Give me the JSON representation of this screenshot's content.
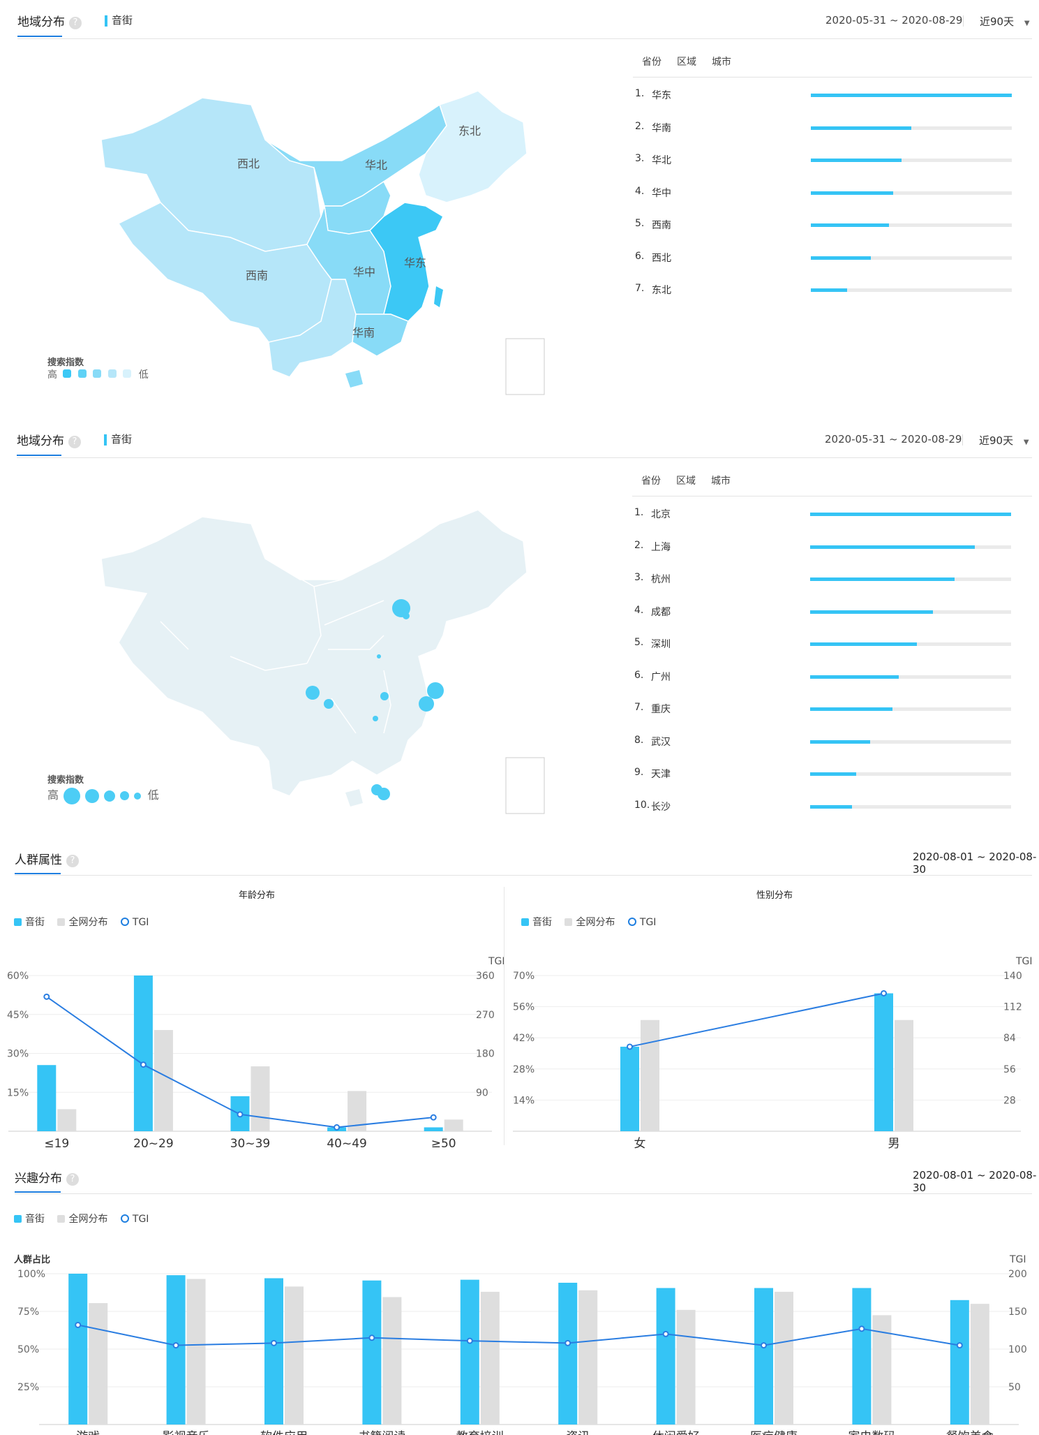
{
  "section1": {
    "title": "地域分布",
    "help": "?",
    "keyword": "音街",
    "date_range": "2020-05-31 ~ 2020-08-29",
    "period": "近90天",
    "subtabs": [
      "省份",
      "区域",
      "城市"
    ],
    "map_labels": [
      "东北",
      "华北",
      "西北",
      "西南",
      "华中",
      "华东",
      "华南"
    ],
    "legend_title": "搜索指数",
    "legend_high": "高",
    "legend_low": "低",
    "ranking": [
      {
        "rank": "1.",
        "name": "华东",
        "value": 100
      },
      {
        "rank": "2.",
        "name": "华南",
        "value": 50
      },
      {
        "rank": "3.",
        "name": "华北",
        "value": 45
      },
      {
        "rank": "4.",
        "name": "华中",
        "value": 41
      },
      {
        "rank": "5.",
        "name": "西南",
        "value": 39
      },
      {
        "rank": "6.",
        "name": "西北",
        "value": 30
      },
      {
        "rank": "7.",
        "name": "东北",
        "value": 18
      }
    ]
  },
  "section2": {
    "title": "地域分布",
    "help": "?",
    "keyword": "音街",
    "date_range": "2020-05-31 ~ 2020-08-29",
    "period": "近90天",
    "subtabs": [
      "省份",
      "区域",
      "城市"
    ],
    "legend_title": "搜索指数",
    "legend_high": "高",
    "legend_low": "低",
    "ranking": [
      {
        "rank": "1.",
        "name": "北京",
        "value": 100
      },
      {
        "rank": "2.",
        "name": "上海",
        "value": 82
      },
      {
        "rank": "3.",
        "name": "杭州",
        "value": 72
      },
      {
        "rank": "4.",
        "name": "成都",
        "value": 61
      },
      {
        "rank": "5.",
        "name": "深圳",
        "value": 53
      },
      {
        "rank": "6.",
        "name": "广州",
        "value": 44
      },
      {
        "rank": "7.",
        "name": "重庆",
        "value": 41
      },
      {
        "rank": "8.",
        "name": "武汉",
        "value": 30
      },
      {
        "rank": "9.",
        "name": "天津",
        "value": 23
      },
      {
        "rank": "10.",
        "name": "长沙",
        "value": 21
      }
    ]
  },
  "section3": {
    "title": "人群属性",
    "help": "?",
    "date_range": "2020-08-01 ~ 2020-08-30"
  },
  "section4": {
    "title": "兴趣分布",
    "help": "?",
    "date_range": "2020-08-01 ~ 2020-08-30"
  },
  "legend": {
    "keyword": "音街",
    "all": "全网分布",
    "tgi": "TGI"
  },
  "colors": {
    "keyword": "#35c4f5",
    "all": "#dedede",
    "tgi": "#2a7de1",
    "accent": "#1f7fe0"
  },
  "chart_data": [
    {
      "type": "bar",
      "title": "年龄分布",
      "categories": [
        "≤19",
        "20~29",
        "30~39",
        "40~49",
        "≥50"
      ],
      "series": [
        {
          "name": "音街",
          "values": [
            25.5,
            60,
            13.5,
            1.5,
            1.5
          ]
        },
        {
          "name": "全网分布",
          "values": [
            8.5,
            39,
            25,
            15.5,
            4.5
          ]
        },
        {
          "name": "TGI",
          "axis": "right",
          "values": [
            311,
            154,
            39,
            9,
            32
          ]
        }
      ],
      "ylim": [
        0,
        60
      ],
      "yticks": [
        "15%",
        "30%",
        "45%",
        "60%"
      ],
      "y2label": "TGI",
      "y2lim": [
        0,
        360
      ],
      "y2ticks": [
        "90",
        "180",
        "270",
        "360"
      ]
    },
    {
      "type": "bar",
      "title": "性别分布",
      "categories": [
        "女",
        "男"
      ],
      "series": [
        {
          "name": "音街",
          "values": [
            38,
            62
          ]
        },
        {
          "name": "全网分布",
          "values": [
            50,
            50
          ]
        },
        {
          "name": "TGI",
          "axis": "right",
          "values": [
            76,
            124
          ]
        }
      ],
      "ylim": [
        0,
        70
      ],
      "yticks": [
        "14%",
        "28%",
        "42%",
        "56%",
        "70%"
      ],
      "y2label": "TGI",
      "y2lim": [
        0,
        140
      ],
      "y2ticks": [
        "28",
        "56",
        "84",
        "112",
        "140"
      ]
    },
    {
      "type": "bar",
      "title": "",
      "ylabel": "人群占比",
      "categories": [
        "游戏",
        "影视音乐",
        "软件应用",
        "书籍阅读",
        "教育培训",
        "资讯",
        "休闲爱好",
        "医疗健康",
        "家电数码",
        "餐饮美食"
      ],
      "series": [
        {
          "name": "音街",
          "values": [
            100,
            99,
            97,
            95.5,
            96,
            94,
            90.5,
            90.5,
            90.5,
            82.5
          ]
        },
        {
          "name": "全网分布",
          "values": [
            80.5,
            96.5,
            91.5,
            84.5,
            88,
            89,
            76,
            88,
            72.5,
            80
          ]
        },
        {
          "name": "TGI",
          "axis": "right",
          "values": [
            132,
            105,
            108,
            115,
            111,
            108,
            120,
            105,
            127,
            105
          ]
        }
      ],
      "ylim": [
        0,
        100
      ],
      "yticks": [
        "25%",
        "50%",
        "75%",
        "100%"
      ],
      "y2label": "TGI",
      "y2lim": [
        0,
        200
      ],
      "y2ticks": [
        "50",
        "100",
        "150",
        "200"
      ]
    }
  ]
}
